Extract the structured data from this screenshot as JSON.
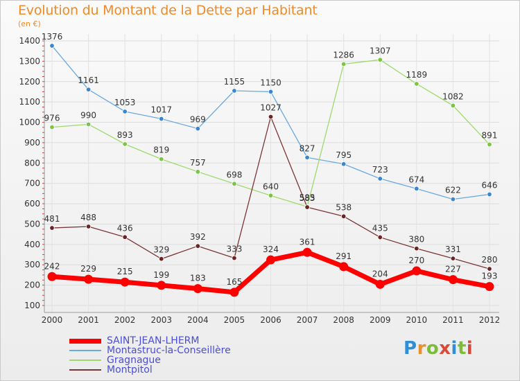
{
  "title": "Evolution du Montant de la Dette par Habitant",
  "subtitle": "(en €)",
  "logo_text": "Proxiti",
  "chart_data": {
    "type": "line",
    "title": "Evolution du Montant de la Dette par Habitant",
    "ylabel": "(en €)",
    "xlabel": "",
    "categories": [
      "2000",
      "2001",
      "2002",
      "2003",
      "2004",
      "2005",
      "2006",
      "2007",
      "2008",
      "2009",
      "2010",
      "2011",
      "2012"
    ],
    "ylim": [
      100,
      1400
    ],
    "yticks": [
      100,
      200,
      300,
      400,
      500,
      600,
      700,
      800,
      900,
      1000,
      1100,
      1200,
      1300,
      1400
    ],
    "grid": true,
    "legend_position": "bottom-left",
    "series": [
      {
        "name": "SAINT-JEAN-LHERM",
        "color": "#ff0000",
        "values": [
          242,
          229,
          215,
          199,
          183,
          165,
          324,
          361,
          291,
          204,
          270,
          227,
          193
        ]
      },
      {
        "name": "Montastruc-la-Conseillère",
        "color": "#4a90d9",
        "values": [
          1376,
          1161,
          1053,
          1017,
          969,
          1155,
          1150,
          827,
          795,
          723,
          674,
          622,
          646
        ]
      },
      {
        "name": "Gragnague",
        "color": "#8fd05a",
        "values": [
          976,
          990,
          893,
          819,
          757,
          698,
          640,
          585,
          1286,
          1307,
          1189,
          1082,
          891
        ]
      },
      {
        "name": "Montpitol",
        "color": "#7a2a2a",
        "values": [
          481,
          488,
          436,
          329,
          392,
          333,
          1027,
          583,
          538,
          435,
          380,
          331,
          280
        ]
      }
    ]
  }
}
